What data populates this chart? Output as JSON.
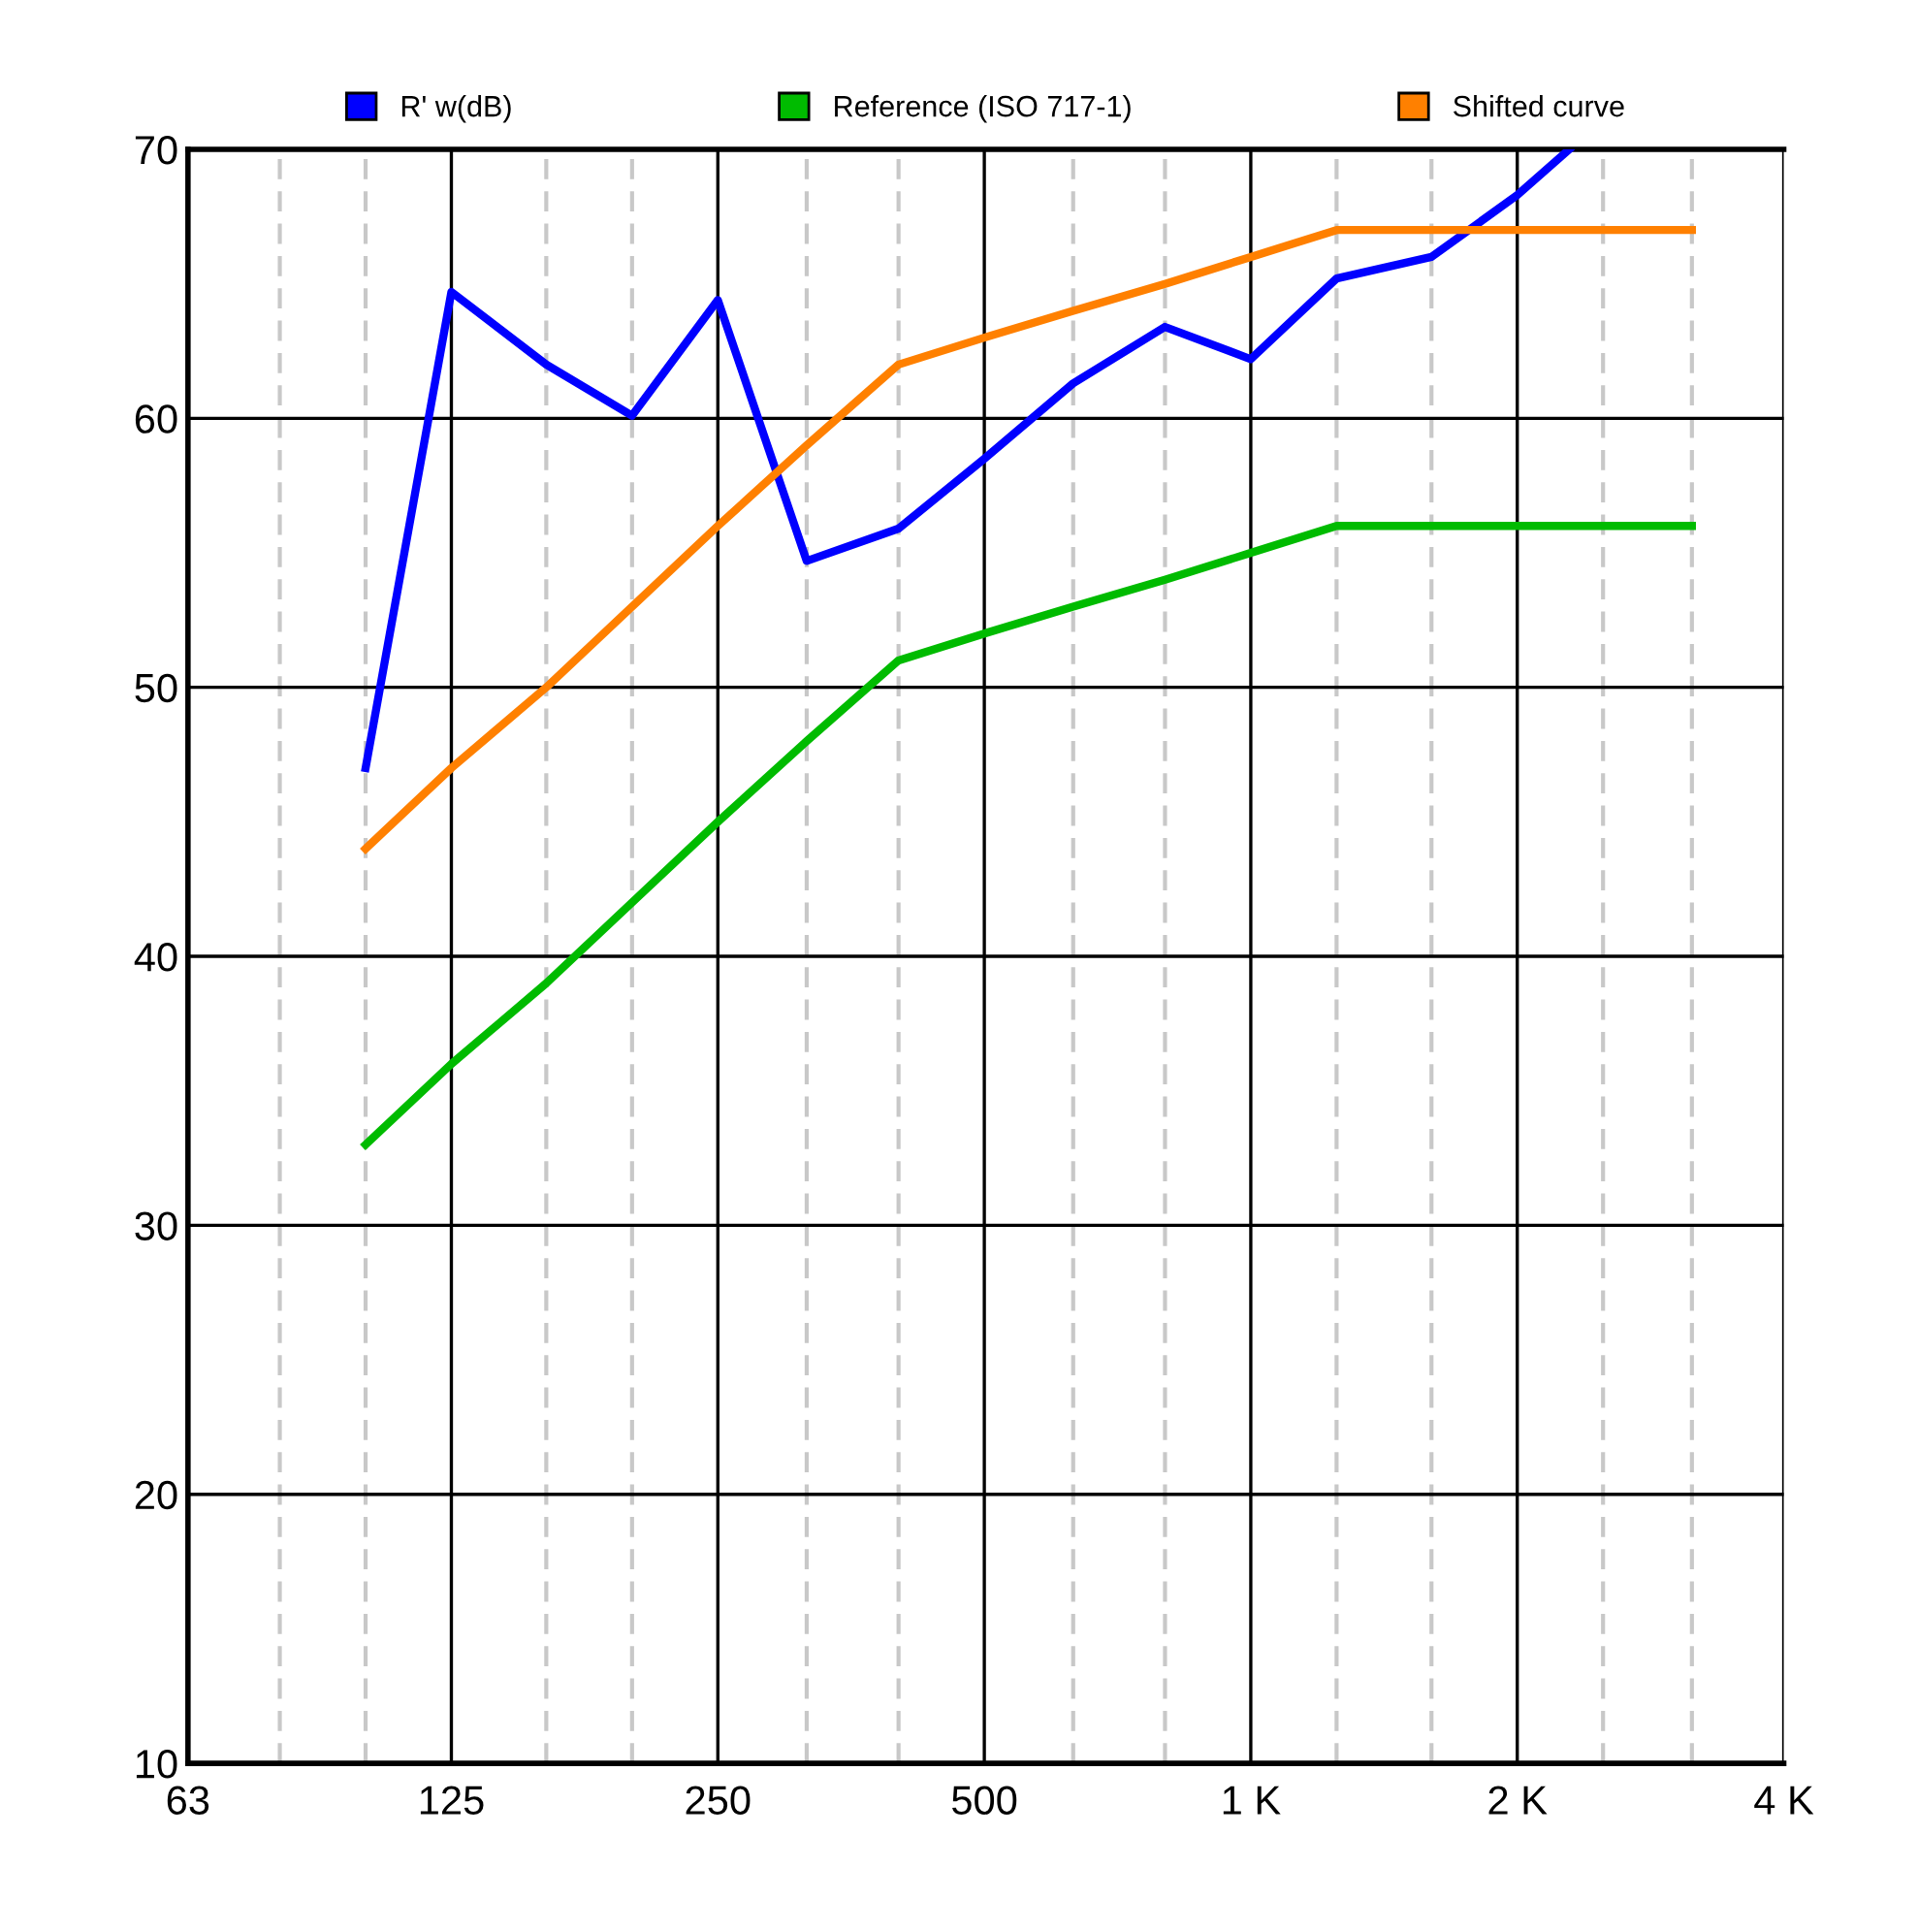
{
  "chart_data": {
    "type": "line",
    "x": [
      100,
      125,
      160,
      200,
      250,
      315,
      400,
      500,
      630,
      800,
      1000,
      1250,
      1600,
      2000,
      2500,
      3150
    ],
    "series": [
      {
        "name": "R' w(dB)",
        "color": "#0000ff",
        "x": [
          100,
          125,
          160,
          200,
          250,
          315,
          400,
          500,
          630,
          800,
          1000,
          1250,
          1600,
          2000,
          2290
        ],
        "values": [
          47,
          64.7,
          62,
          60.1,
          64.4,
          54.7,
          55.9,
          58.5,
          61.3,
          63.4,
          62.2,
          65.2,
          66,
          68.3,
          70
        ]
      },
      {
        "name": "Reference (ISO 717-1)",
        "color": "#00bb00",
        "values": [
          33,
          36,
          39,
          42,
          45,
          48,
          51,
          52,
          53,
          54,
          55,
          56,
          56,
          56,
          56,
          56
        ]
      },
      {
        "name": "Shifted curve",
        "color": "#ff8000",
        "values": [
          44,
          47,
          50,
          53,
          56,
          59,
          62,
          63,
          64,
          65,
          66,
          67,
          67,
          67,
          67,
          67
        ]
      }
    ],
    "log": "x",
    "xlim": [
      63,
      4000
    ],
    "xticks": [
      63,
      {
        "value": 80,
        "label": null
      },
      {
        "value": 100,
        "label": null
      },
      125,
      {
        "value": 160,
        "label": null
      },
      {
        "value": 200,
        "label": null
      },
      250,
      {
        "value": 315,
        "label": null
      },
      {
        "value": 400,
        "label": null
      },
      500,
      {
        "value": 630,
        "label": null
      },
      {
        "value": 800,
        "label": null
      },
      {
        "value": 1000,
        "label": "1 K"
      },
      {
        "value": 1250,
        "label": null
      },
      {
        "value": 1600,
        "label": null
      },
      {
        "value": 2000,
        "label": "2 K"
      },
      {
        "value": 2500,
        "label": null
      },
      {
        "value": 3150,
        "label": null
      },
      {
        "value": 4000,
        "label": "4 K"
      }
    ],
    "ylim": [
      10,
      70
    ],
    "yticks": [
      10,
      20,
      30,
      40,
      50,
      60,
      70
    ],
    "grid": true,
    "legend": "top",
    "marker": "none",
    "line_style": "solid"
  }
}
